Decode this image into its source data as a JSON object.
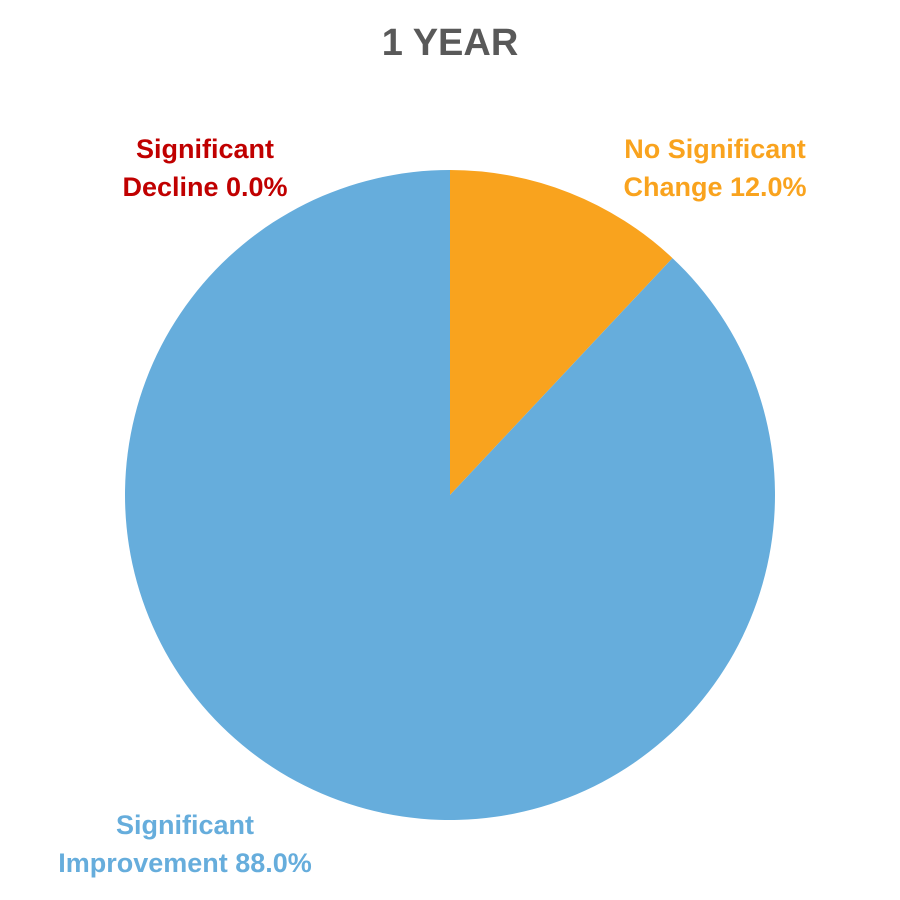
{
  "chart_data": {
    "type": "pie",
    "title": "1 YEAR",
    "slices": [
      {
        "label_line1": "No Significant",
        "label_line2": "Change 12.0%",
        "value": 12.0,
        "color": "#F9A31E"
      },
      {
        "label_line1": "Significant",
        "label_line2": "Improvement 88.0%",
        "value": 88.0,
        "color": "#66ADDC"
      },
      {
        "label_line1": "Significant",
        "label_line2": "Decline 0.0%",
        "value": 0.0,
        "color": "#C00000"
      }
    ],
    "start_angle": "12 o'clock",
    "direction": "clockwise"
  }
}
